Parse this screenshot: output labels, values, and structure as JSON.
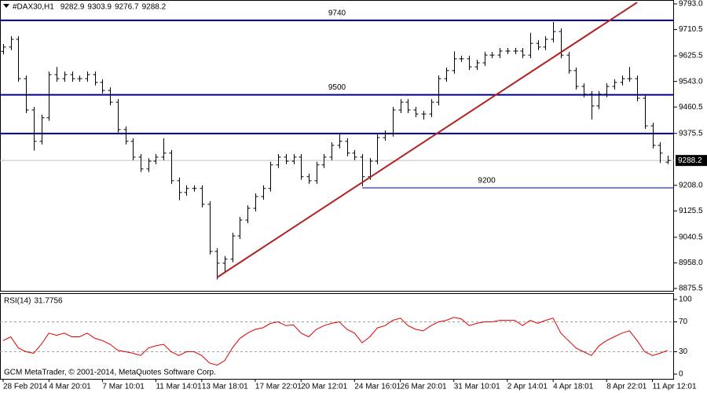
{
  "chart_data": [
    {
      "type": "ohlc",
      "title": "#DAX30,H1",
      "categories": [
        "28 Feb 2014",
        null,
        null,
        null,
        null,
        null,
        "4 Mar 20:01",
        null,
        null,
        null,
        null,
        null,
        null,
        "7 Mar 10:01",
        null,
        null,
        null,
        null,
        null,
        null,
        "11 Mar 14:01",
        null,
        null,
        null,
        null,
        null,
        "13 Mar 18:01",
        null,
        null,
        null,
        null,
        null,
        null,
        "17 Mar 22:01",
        null,
        null,
        null,
        null,
        null,
        "20 Mar 12:01",
        null,
        null,
        null,
        null,
        null,
        null,
        "24 Mar 16:01",
        null,
        null,
        null,
        null,
        null,
        "26 Mar 20:01",
        null,
        null,
        null,
        null,
        null,
        null,
        "31 Mar 10:01",
        null,
        null,
        null,
        null,
        null,
        null,
        "2 Apr 14:01",
        null,
        null,
        null,
        null,
        null,
        "4 Apr 18:01",
        null,
        null,
        null,
        null,
        null,
        null,
        "8 Apr 22:01",
        null,
        null,
        null,
        null,
        null,
        "11 Apr 12:01",
        null,
        null
      ],
      "open": [
        9640,
        9654,
        9679,
        9552,
        9451,
        9350,
        9426,
        9565,
        9552,
        9565,
        9552,
        9552,
        9565,
        9540,
        9514,
        9476,
        9388,
        9350,
        9299,
        9261,
        9286,
        9299,
        9312,
        9223,
        9185,
        9198,
        9198,
        9147,
        8995,
        8957,
        8970,
        9045,
        9096,
        9134,
        9172,
        9198,
        9274,
        9299,
        9286,
        9299,
        9236,
        9223,
        9274,
        9299,
        9337,
        9350,
        9312,
        9299,
        9236,
        9286,
        9362,
        9375,
        9451,
        9476,
        9451,
        9438,
        9438,
        9476,
        9552,
        9578,
        9616,
        9616,
        9590,
        9603,
        9628,
        9628,
        9641,
        9641,
        9641,
        9628,
        9666,
        9654,
        9679,
        9704,
        9628,
        9578,
        9527,
        9502,
        9464,
        9502,
        9527,
        9540,
        9552,
        9552,
        9489,
        9400,
        9337,
        9282.9
      ],
      "high": [
        9664,
        9689,
        9689,
        9562,
        9461,
        9436,
        9575,
        9590,
        9575,
        9575,
        9562,
        9575,
        9575,
        9550,
        9524,
        9486,
        9398,
        9360,
        9309,
        9296,
        9309,
        9360,
        9322,
        9233,
        9208,
        9208,
        9208,
        9157,
        9005,
        8980,
        9055,
        9106,
        9144,
        9182,
        9208,
        9284,
        9309,
        9309,
        9309,
        9309,
        9246,
        9284,
        9309,
        9347,
        9375,
        9360,
        9322,
        9309,
        9296,
        9372,
        9385,
        9461,
        9486,
        9486,
        9461,
        9448,
        9486,
        9562,
        9588,
        9640,
        9626,
        9626,
        9613,
        9638,
        9638,
        9651,
        9651,
        9651,
        9651,
        9700,
        9676,
        9689,
        9735,
        9714,
        9638,
        9588,
        9537,
        9512,
        9512,
        9537,
        9550,
        9562,
        9590,
        9562,
        9499,
        9410,
        9347,
        9303.9
      ],
      "low": [
        9630,
        9644,
        9542,
        9441,
        9320,
        9340,
        9416,
        9542,
        9542,
        9542,
        9542,
        9542,
        9530,
        9504,
        9466,
        9378,
        9340,
        9289,
        9251,
        9251,
        9276,
        9289,
        9213,
        9160,
        9175,
        9188,
        9137,
        8985,
        8905,
        8930,
        8960,
        9035,
        9086,
        9124,
        9162,
        9188,
        9264,
        9276,
        9276,
        9226,
        9213,
        9213,
        9264,
        9289,
        9327,
        9302,
        9289,
        9205,
        9226,
        9276,
        9352,
        9365,
        9441,
        9441,
        9428,
        9420,
        9428,
        9466,
        9542,
        9568,
        9606,
        9580,
        9580,
        9593,
        9618,
        9618,
        9631,
        9631,
        9618,
        9618,
        9644,
        9644,
        9669,
        9618,
        9568,
        9517,
        9492,
        9420,
        9454,
        9492,
        9517,
        9530,
        9542,
        9479,
        9390,
        9327,
        9280,
        9276.7
      ],
      "close": [
        9654,
        9679,
        9552,
        9451,
        9350,
        9426,
        9565,
        9552,
        9565,
        9552,
        9552,
        9565,
        9540,
        9514,
        9476,
        9388,
        9350,
        9299,
        9261,
        9286,
        9299,
        9312,
        9223,
        9185,
        9198,
        9198,
        9147,
        8995,
        8957,
        8970,
        9045,
        9096,
        9134,
        9172,
        9198,
        9274,
        9299,
        9286,
        9299,
        9236,
        9223,
        9274,
        9299,
        9337,
        9350,
        9312,
        9299,
        9236,
        9286,
        9362,
        9375,
        9451,
        9476,
        9451,
        9438,
        9438,
        9476,
        9552,
        9578,
        9616,
        9616,
        9590,
        9603,
        9628,
        9628,
        9641,
        9641,
        9641,
        9628,
        9666,
        9654,
        9679,
        9704,
        9628,
        9578,
        9527,
        9502,
        9464,
        9502,
        9527,
        9540,
        9552,
        9552,
        9489,
        9400,
        9337,
        9312,
        9288.2
      ],
      "color": "#000000",
      "ylim": [
        8875.5,
        9793
      ],
      "yticks": [
        {
          "value": 9793,
          "label": "9793.0"
        },
        9710.5,
        9625.5,
        {
          "value": 9543,
          "label": "9543.0"
        },
        9460.5,
        9375.5,
        {
          "value": 9208,
          "label": "9208.0"
        },
        9125.5,
        9040.5,
        {
          "value": 8958,
          "label": "8958.0"
        },
        8875.5
      ],
      "levels": [
        {
          "value": 9740,
          "labeled": true
        },
        {
          "value": 9500,
          "labeled": true
        },
        {
          "value": 9375,
          "labeled": false
        },
        {
          "value": 9200,
          "labeled": true,
          "from_bar": 47
        }
      ],
      "level_color": "#00008b",
      "trendline": {
        "from": [
          28,
          8911
        ],
        "to": [
          83,
          9798
        ],
        "color": "#b22222"
      }
    },
    {
      "type": "line",
      "title": "RSI(14)",
      "values": [
        45,
        50,
        35,
        30,
        28,
        40,
        55,
        52,
        55,
        50,
        50,
        55,
        48,
        45,
        40,
        32,
        30,
        28,
        25,
        35,
        38,
        40,
        30,
        25,
        30,
        30,
        25,
        15,
        12,
        18,
        35,
        48,
        55,
        60,
        62,
        68,
        70,
        65,
        66,
        55,
        50,
        60,
        65,
        68,
        70,
        60,
        55,
        42,
        50,
        62,
        65,
        72,
        75,
        65,
        60,
        58,
        65,
        70,
        72,
        76,
        74,
        65,
        68,
        70,
        70,
        72,
        72,
        72,
        65,
        72,
        68,
        72,
        75,
        55,
        45,
        35,
        30,
        25,
        38,
        45,
        50,
        55,
        58,
        45,
        30,
        25,
        28,
        31.7756
      ],
      "color": "#e00000",
      "ylim": [
        0,
        100
      ],
      "yticks": [
        100,
        70,
        30,
        0
      ],
      "levels": [
        70,
        30
      ],
      "annotation": "GCM MetaTrader, © 2001-2014, MetaQuotes Software Corp."
    }
  ]
}
